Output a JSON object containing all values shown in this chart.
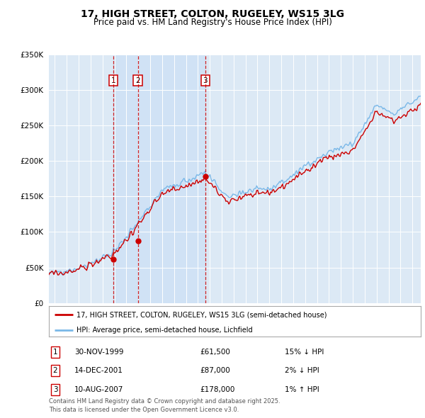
{
  "title": "17, HIGH STREET, COLTON, RUGELEY, WS15 3LG",
  "subtitle": "Price paid vs. HM Land Registry's House Price Index (HPI)",
  "legend_line1": "17, HIGH STREET, COLTON, RUGELEY, WS15 3LG (semi-detached house)",
  "legend_line2": "HPI: Average price, semi-detached house, Lichfield",
  "sale1_label": "1",
  "sale1_date": "30-NOV-1999",
  "sale1_price": "£61,500",
  "sale1_hpi": "15% ↓ HPI",
  "sale1_year": 1999.92,
  "sale1_value": 61500,
  "sale2_label": "2",
  "sale2_date": "14-DEC-2001",
  "sale2_price": "£87,000",
  "sale2_hpi": "2% ↓ HPI",
  "sale2_year": 2001.96,
  "sale2_value": 87000,
  "sale3_label": "3",
  "sale3_date": "10-AUG-2007",
  "sale3_price": "£178,000",
  "sale3_hpi": "1% ↑ HPI",
  "sale3_year": 2007.62,
  "sale3_value": 178000,
  "hpi_color": "#7ab8e8",
  "price_color": "#cc0000",
  "annotation_color": "#cc0000",
  "shade_color": "#cce0f5",
  "background_color": "#ffffff",
  "plot_bg_color": "#dce9f5",
  "grid_color": "#ffffff",
  "footer_text": "Contains HM Land Registry data © Crown copyright and database right 2025.\nThis data is licensed under the Open Government Licence v3.0.",
  "ylim_max": 350000,
  "ylim_min": 0,
  "xmin": 1994.5,
  "xmax": 2025.7
}
